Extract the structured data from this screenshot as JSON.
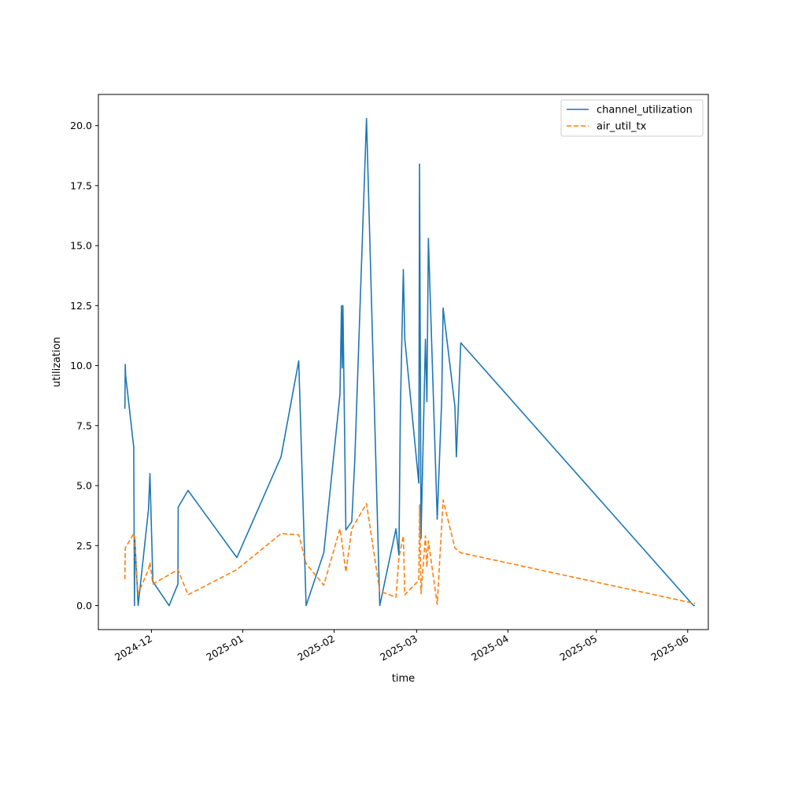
{
  "chart_data": {
    "type": "line",
    "xlabel": "time",
    "ylabel": "utilization",
    "xlim": [
      "2024-11-13",
      "2025-06-08"
    ],
    "ylim": [
      -1.0,
      21.3
    ],
    "x_ticks": [
      {
        "date": "2024-12-01",
        "label": "2024-12"
      },
      {
        "date": "2025-01-01",
        "label": "2025-01"
      },
      {
        "date": "2025-02-01",
        "label": "2025-02"
      },
      {
        "date": "2025-03-01",
        "label": "2025-03"
      },
      {
        "date": "2025-04-01",
        "label": "2025-04"
      },
      {
        "date": "2025-05-01",
        "label": "2025-05"
      },
      {
        "date": "2025-06-01",
        "label": "2025-06"
      }
    ],
    "y_ticks": [
      {
        "value": 0.0,
        "label": "0.0"
      },
      {
        "value": 2.5,
        "label": "2.5"
      },
      {
        "value": 5.0,
        "label": "5.0"
      },
      {
        "value": 7.5,
        "label": "7.5"
      },
      {
        "value": 10.0,
        "label": "10.0"
      },
      {
        "value": 12.5,
        "label": "12.5"
      },
      {
        "value": 15.0,
        "label": "15.0"
      },
      {
        "value": 17.5,
        "label": "17.5"
      },
      {
        "value": 20.0,
        "label": "20.0"
      }
    ],
    "grid": false,
    "legend_position": "top-right",
    "series": [
      {
        "name": "channel_utilization",
        "color": "#1f77b4",
        "style": "solid",
        "points": [
          [
            "2024-11-22T00:00",
            8.2
          ],
          [
            "2024-11-22T03:00",
            10.05
          ],
          [
            "2024-11-22T06:00",
            9.6
          ],
          [
            "2024-11-25T00:00",
            6.6
          ],
          [
            "2024-11-25T06:00",
            0.0
          ],
          [
            "2024-11-25T09:00",
            2.8
          ],
          [
            "2024-11-26T12:00",
            0.0
          ],
          [
            "2024-11-30T00:00",
            4.0
          ],
          [
            "2024-11-30T12:00",
            5.5
          ],
          [
            "2024-12-01T12:00",
            1.0
          ],
          [
            "2024-12-07T00:00",
            0.0
          ],
          [
            "2024-12-10T00:00",
            0.9
          ],
          [
            "2024-12-10T02:00",
            4.1
          ],
          [
            "2024-12-13T10:00",
            4.8
          ],
          [
            "2024-12-30T00:00",
            2.0
          ],
          [
            "2025-01-14T00:00",
            6.2
          ],
          [
            "2025-01-20T00:00",
            10.2
          ],
          [
            "2025-01-22T12:00",
            0.0
          ],
          [
            "2025-01-28T12:00",
            2.2
          ],
          [
            "2025-02-03T00:00",
            8.8
          ],
          [
            "2025-02-03T12:00",
            12.5
          ],
          [
            "2025-02-03T18:00",
            9.9
          ],
          [
            "2025-02-04T00:00",
            12.5
          ],
          [
            "2025-02-05T00:00",
            3.15
          ],
          [
            "2025-02-07T00:00",
            3.5
          ],
          [
            "2025-02-08T00:00",
            6.0
          ],
          [
            "2025-02-12T00:00",
            20.3
          ],
          [
            "2025-02-16T12:00",
            0.0
          ],
          [
            "2025-02-22T00:00",
            3.2
          ],
          [
            "2025-02-23T00:00",
            2.1
          ],
          [
            "2025-02-23T12:00",
            8.2
          ],
          [
            "2025-02-24T12:00",
            14.0
          ],
          [
            "2025-02-25T00:00",
            11.1
          ],
          [
            "2025-03-01T18:00",
            5.1
          ],
          [
            "2025-03-02T00:00",
            18.4
          ],
          [
            "2025-03-02T12:00",
            2.8
          ],
          [
            "2025-03-04T00:00",
            11.1
          ],
          [
            "2025-03-04T12:00",
            8.5
          ],
          [
            "2025-03-05T00:00",
            15.3
          ],
          [
            "2025-03-08T00:00",
            3.6
          ],
          [
            "2025-03-09T12:00",
            8.5
          ],
          [
            "2025-03-10T00:00",
            12.4
          ],
          [
            "2025-03-14T00:00",
            8.3
          ],
          [
            "2025-03-14T12:00",
            6.2
          ],
          [
            "2025-03-16T00:00",
            10.95
          ],
          [
            "2025-06-03T00:00",
            0.0
          ],
          [
            "2025-06-03T12:00",
            0.0
          ]
        ]
      },
      {
        "name": "air_util_tx",
        "color": "#ff7f0e",
        "style": "dashed",
        "points": [
          [
            "2024-11-22T00:00",
            1.1
          ],
          [
            "2024-11-22T03:00",
            2.4
          ],
          [
            "2024-11-25T00:00",
            3.0
          ],
          [
            "2024-11-25T06:00",
            2.9
          ],
          [
            "2024-11-26T00:00",
            1.2
          ],
          [
            "2024-11-26T12:00",
            0.5
          ],
          [
            "2024-11-30T00:00",
            1.5
          ],
          [
            "2024-11-30T12:00",
            1.8
          ],
          [
            "2024-12-01T12:00",
            0.9
          ],
          [
            "2024-12-10T00:00",
            1.5
          ],
          [
            "2024-12-13T10:00",
            0.45
          ],
          [
            "2024-12-30T00:00",
            1.5
          ],
          [
            "2025-01-14T00:00",
            3.0
          ],
          [
            "2025-01-20T00:00",
            2.95
          ],
          [
            "2025-01-22T12:00",
            1.75
          ],
          [
            "2025-01-28T12:00",
            0.85
          ],
          [
            "2025-02-03T00:00",
            3.2
          ],
          [
            "2025-02-03T12:00",
            2.8
          ],
          [
            "2025-02-05T00:00",
            1.4
          ],
          [
            "2025-02-07T00:00",
            3.2
          ],
          [
            "2025-02-12T00:00",
            4.25
          ],
          [
            "2025-02-16T12:00",
            0.6
          ],
          [
            "2025-02-22T00:00",
            0.35
          ],
          [
            "2025-02-23T00:00",
            2.0
          ],
          [
            "2025-02-24T12:00",
            2.9
          ],
          [
            "2025-02-25T00:00",
            0.45
          ],
          [
            "2025-03-01T18:00",
            1.05
          ],
          [
            "2025-03-02T00:00",
            4.2
          ],
          [
            "2025-03-02T12:00",
            0.5
          ],
          [
            "2025-03-04T00:00",
            2.9
          ],
          [
            "2025-03-04T12:00",
            1.6
          ],
          [
            "2025-03-05T00:00",
            2.7
          ],
          [
            "2025-03-08T00:00",
            0.05
          ],
          [
            "2025-03-10T00:00",
            4.4
          ],
          [
            "2025-03-14T00:00",
            2.4
          ],
          [
            "2025-03-16T00:00",
            2.2
          ],
          [
            "2025-06-03T00:00",
            0.1
          ],
          [
            "2025-06-03T12:00",
            0.1
          ]
        ]
      }
    ]
  }
}
